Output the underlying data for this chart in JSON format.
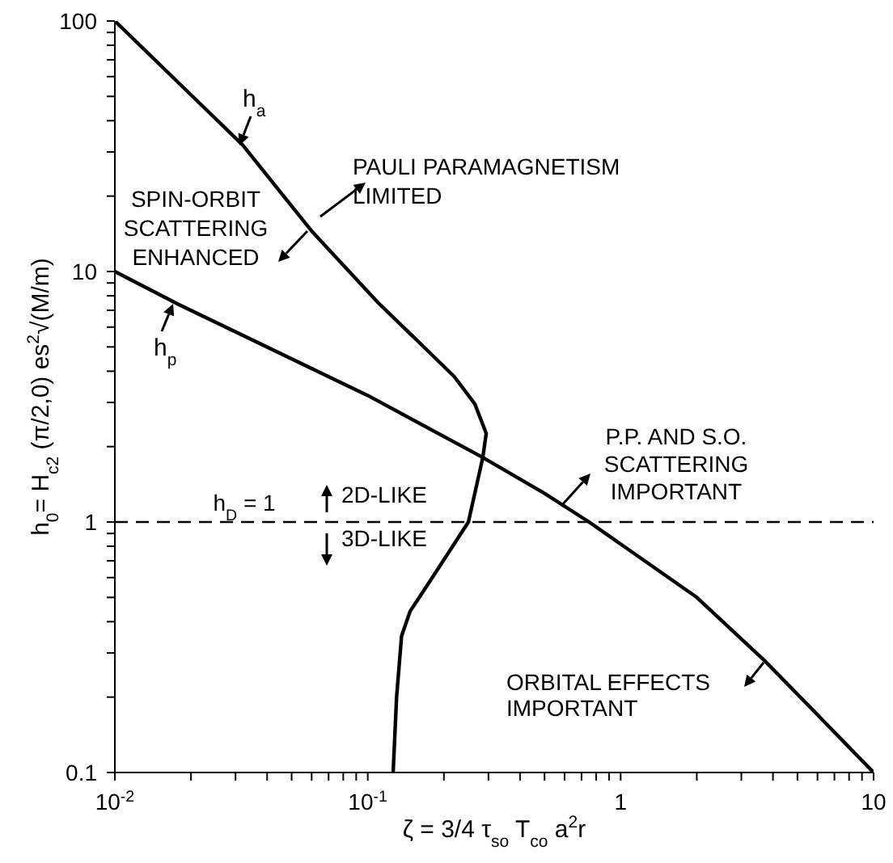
{
  "chart_data": {
    "type": "line",
    "xlabel": "ζ = 3/4 τ$_{so}$ T$_{co}$ a$^{2}$r",
    "ylabel": "h$_{0}$= H$_{c2}$ (π/2,0) es$^{2}$√(M/m)",
    "log": "xy",
    "xlim": [
      0.01,
      10
    ],
    "ylim": [
      0.1,
      100
    ],
    "xticks": [
      {
        "value": 0.01,
        "label": "10$^{-2}$"
      },
      {
        "value": 0.02,
        "label": null
      },
      {
        "value": 0.03,
        "label": null
      },
      {
        "value": 0.04,
        "label": null
      },
      {
        "value": 0.05,
        "label": null
      },
      {
        "value": 0.06,
        "label": null
      },
      {
        "value": 0.07,
        "label": null
      },
      {
        "value": 0.08,
        "label": null
      },
      {
        "value": 0.09,
        "label": null
      },
      {
        "value": 0.1,
        "label": "10$^{-1}$"
      },
      {
        "value": 0.2,
        "label": null
      },
      {
        "value": 0.3,
        "label": null
      },
      {
        "value": 0.4,
        "label": null
      },
      {
        "value": 0.5,
        "label": null
      },
      {
        "value": 0.6,
        "label": null
      },
      {
        "value": 0.7,
        "label": null
      },
      {
        "value": 0.8,
        "label": null
      },
      {
        "value": 0.9,
        "label": null
      },
      1,
      {
        "value": 2,
        "label": null
      },
      {
        "value": 3,
        "label": null
      },
      {
        "value": 4,
        "label": null
      },
      {
        "value": 5,
        "label": null
      },
      {
        "value": 6,
        "label": null
      },
      {
        "value": 7,
        "label": null
      },
      {
        "value": 8,
        "label": null
      },
      {
        "value": 9,
        "label": null
      },
      10
    ],
    "yticks": [
      0.1,
      {
        "value": 0.2,
        "label": null
      },
      {
        "value": 0.3,
        "label": null
      },
      {
        "value": 0.4,
        "label": null
      },
      {
        "value": 0.5,
        "label": null
      },
      {
        "value": 0.6,
        "label": null
      },
      {
        "value": 0.7,
        "label": null
      },
      {
        "value": 0.8,
        "label": null
      },
      {
        "value": 0.9,
        "label": null
      },
      1,
      {
        "value": 2,
        "label": null
      },
      {
        "value": 3,
        "label": null
      },
      {
        "value": 4,
        "label": null
      },
      {
        "value": 5,
        "label": null
      },
      {
        "value": 6,
        "label": null
      },
      {
        "value": 7,
        "label": null
      },
      {
        "value": 8,
        "label": null
      },
      {
        "value": 9,
        "label": null
      },
      10,
      {
        "value": 20,
        "label": null
      },
      {
        "value": 30,
        "label": null
      },
      {
        "value": 40,
        "label": null
      },
      {
        "value": 50,
        "label": null
      },
      {
        "value": 60,
        "label": null
      },
      {
        "value": 70,
        "label": null
      },
      {
        "value": 80,
        "label": null
      },
      {
        "value": 90,
        "label": null
      },
      100
    ],
    "series": [
      {
        "name": "h$_{a}$",
        "color": "#000000",
        "x": [
          0.01,
          0.032,
          0.06,
          0.11,
          0.16,
          0.22,
          0.265,
          0.294,
          0.285,
          0.25,
          0.18,
          0.147,
          0.136,
          0.13,
          0.126
        ],
        "values": [
          100,
          32,
          14.5,
          7.5,
          5.2,
          3.8,
          2.96,
          2.26,
          1.81,
          1.0,
          0.6,
          0.44,
          0.35,
          0.2,
          0.1
        ]
      },
      {
        "name": "h$_{p}$",
        "color": "#000000",
        "x": [
          0.01,
          0.0178,
          0.1,
          0.285,
          0.5,
          0.75,
          2,
          3.7,
          6,
          10
        ],
        "values": [
          10,
          7.4,
          3.2,
          1.81,
          1.3,
          1.0,
          0.5,
          0.28,
          0.17,
          0.1
        ]
      }
    ],
    "line_style": "solid",
    "marker": "none",
    "ref_lines": [
      {
        "axis": "y",
        "value": 1,
        "label": "h$_{D}$ = 1",
        "color": "#000000",
        "line_style": "dashed"
      }
    ],
    "annotations": [
      "PAULI PARAMAGNETISM\nLIMITED",
      "SPIN-ORBIT\nSCATTERING\nENHANCED",
      "2D-LIKE",
      "3D-LIKE",
      "P.P. AND S.O.\nSCATTERING\nIMPORTANT",
      "ORBITAL EFFECTS\nIMPORTANT"
    ]
  }
}
